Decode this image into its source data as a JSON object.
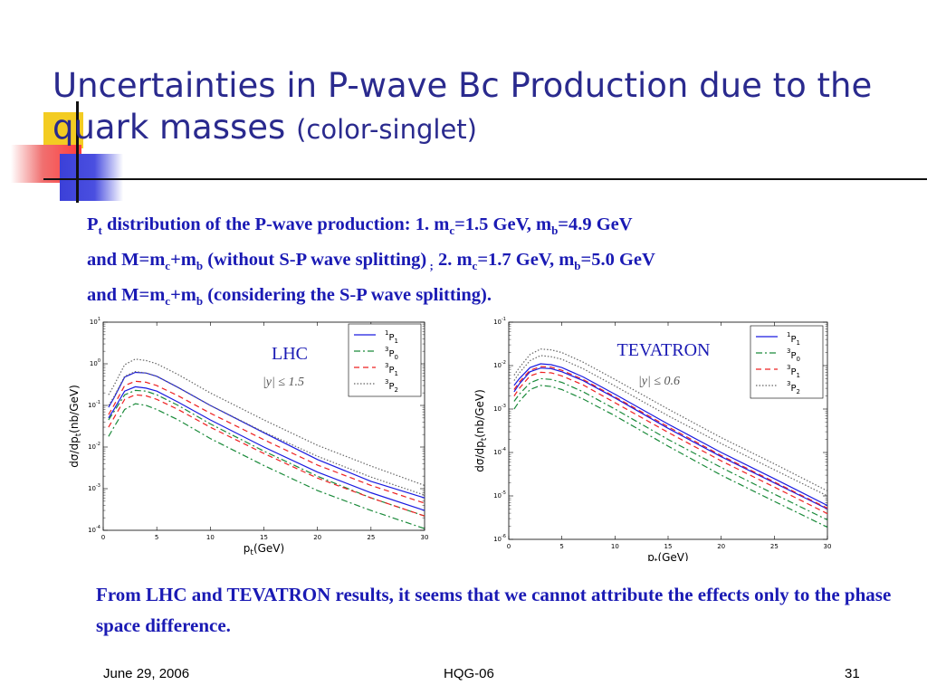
{
  "title": {
    "main": "Uncertainties in P-wave Bc Production due to the quark masses",
    "sub": "(color-singlet)"
  },
  "description": {
    "line1": {
      "p": "P",
      "p_sub": "t",
      "t1": " distribution  of the P-wave production:  1. m",
      "mc_sub": "c",
      "t2": "=1.5 GeV, m",
      "mb_sub": "b",
      "t3": "=4.9 GeV"
    },
    "line2": {
      "t1": "and M=m",
      "c_sub": "c",
      "t2": "+m",
      "b_sub": "b",
      "t3": " (without S-P wave splitting)",
      "semi": " ;",
      "t4": " 2. m",
      "c2_sub": "c",
      "t5": "=1.7 GeV, m",
      "b2_sub": "b",
      "t6": "=5.0 GeV"
    },
    "line3": {
      "t1": "and M=m",
      "c_sub": "c",
      "t2": "+m",
      "b_sub": "b",
      "t3": " (considering the S-P wave splitting)."
    }
  },
  "conclusion": "From LHC and TEVATRON results, it seems that we cannot attribute the effects only to the phase space difference.",
  "footer": {
    "date": "June 29, 2006",
    "center": "HQG-06",
    "page": "31"
  },
  "colors": {
    "title": "#2a2a8e",
    "body": "#1a1ab4",
    "p1": "#1a1ae0",
    "p0": "#1a8a3a",
    "p11": "#ee2222",
    "p2": "#666666"
  },
  "chart_data": [
    {
      "type": "line",
      "name": "LHC",
      "annotation": "|y| ≤ 1.5",
      "xlabel": "p_t(GeV)",
      "ylabel": "dσ/dp_t(nb/GeV)",
      "xlim": [
        0,
        30
      ],
      "xticks": [
        "0",
        "5",
        "10",
        "15",
        "20",
        "25",
        "30"
      ],
      "yscale": "log",
      "ylim": [
        0.0001,
        10
      ],
      "yticks": [
        "10^-4",
        "10^-3",
        "10^-2",
        "10^-1",
        "10^0",
        "10^1"
      ],
      "x": [
        0.5,
        1,
        2,
        3,
        4,
        5,
        7,
        10,
        15,
        20,
        25,
        30
      ],
      "legend": [
        "1P1",
        "3P0",
        "3P1",
        "3P2"
      ],
      "legend_position": "top-right",
      "series": [
        {
          "name": "1P1",
          "color": "#1a1ae0",
          "dash": "",
          "values": [
            0.09,
            0.15,
            0.48,
            0.62,
            0.6,
            0.5,
            0.27,
            0.1,
            0.022,
            0.005,
            0.0015,
            0.0006
          ]
        },
        {
          "name": "1P1",
          "color": "#1a1ae0",
          "dash": "",
          "values": [
            0.05,
            0.08,
            0.22,
            0.28,
            0.26,
            0.22,
            0.12,
            0.045,
            0.01,
            0.0025,
            0.0008,
            0.0003
          ]
        },
        {
          "name": "3P0",
          "color": "#1a8a3a",
          "dash": "7 3 2 3",
          "values": [
            0.045,
            0.07,
            0.18,
            0.23,
            0.22,
            0.18,
            0.1,
            0.036,
            0.008,
            0.002,
            0.0006,
            0.00022
          ]
        },
        {
          "name": "3P0",
          "color": "#1a8a3a",
          "dash": "7 3 2 3",
          "values": [
            0.018,
            0.03,
            0.08,
            0.11,
            0.1,
            0.08,
            0.045,
            0.016,
            0.0036,
            0.0009,
            0.0003,
            0.00011
          ]
        },
        {
          "name": "3P1",
          "color": "#ee2222",
          "dash": "6 4",
          "values": [
            0.06,
            0.1,
            0.3,
            0.38,
            0.36,
            0.3,
            0.17,
            0.065,
            0.015,
            0.0037,
            0.0012,
            0.00045
          ]
        },
        {
          "name": "3P1",
          "color": "#ee2222",
          "dash": "6 4",
          "values": [
            0.03,
            0.05,
            0.14,
            0.18,
            0.17,
            0.14,
            0.08,
            0.03,
            0.007,
            0.0018,
            0.0006,
            0.00022
          ]
        },
        {
          "name": "3P2",
          "color": "#666666",
          "dash": "1.5 2",
          "values": [
            0.18,
            0.3,
            0.95,
            1.3,
            1.2,
            1.0,
            0.55,
            0.2,
            0.045,
            0.011,
            0.0035,
            0.0012
          ]
        },
        {
          "name": "3P2",
          "color": "#666666",
          "dash": "1.5 2",
          "values": [
            0.1,
            0.16,
            0.5,
            0.65,
            0.6,
            0.5,
            0.27,
            0.1,
            0.023,
            0.006,
            0.0019,
            0.0007
          ]
        }
      ]
    },
    {
      "type": "line",
      "name": "TEVATRON",
      "annotation": "|y| ≤ 0.6",
      "xlabel": "p_t(GeV)",
      "ylabel": "dσ/dp_t(nb/GeV)",
      "xlim": [
        0,
        30
      ],
      "xticks": [
        "0",
        "5",
        "10",
        "15",
        "20",
        "25",
        "30"
      ],
      "yscale": "log",
      "ylim": [
        1e-06,
        0.1
      ],
      "yticks": [
        "10^-6",
        "10^-5",
        "10^-4",
        "10^-3",
        "10^-2",
        "10^-1"
      ],
      "x": [
        0.5,
        1,
        2,
        3,
        4,
        5,
        7,
        10,
        15,
        20,
        25,
        30
      ],
      "legend": [
        "1P1",
        "3P0",
        "3P1",
        "3P2"
      ],
      "legend_position": "top-right",
      "series": [
        {
          "name": "1P1",
          "color": "#1a1ae0",
          "dash": "",
          "values": [
            0.0035,
            0.005,
            0.009,
            0.011,
            0.0105,
            0.009,
            0.0055,
            0.0022,
            0.00045,
            0.0001,
            2.5e-05,
            6e-06
          ]
        },
        {
          "name": "1P1",
          "color": "#1a1ae0",
          "dash": "",
          "values": [
            0.0025,
            0.0038,
            0.0072,
            0.0088,
            0.0085,
            0.0072,
            0.0045,
            0.0018,
            0.00036,
            8e-05,
            2e-05,
            5e-06
          ]
        },
        {
          "name": "3P0",
          "color": "#1a8a3a",
          "dash": "7 3 2 3",
          "values": [
            0.0015,
            0.0022,
            0.004,
            0.005,
            0.0048,
            0.0041,
            0.0025,
            0.001,
            0.0002,
            4.5e-05,
            1.1e-05,
            2.8e-06
          ]
        },
        {
          "name": "3P0",
          "color": "#1a8a3a",
          "dash": "7 3 2 3",
          "values": [
            0.001,
            0.0015,
            0.0028,
            0.0035,
            0.0033,
            0.0028,
            0.0017,
            0.0007,
            0.00014,
            3e-05,
            7.5e-06,
            1.9e-06
          ]
        },
        {
          "name": "3P1",
          "color": "#ee2222",
          "dash": "6 4",
          "values": [
            0.0028,
            0.0042,
            0.0078,
            0.0095,
            0.0092,
            0.0078,
            0.0048,
            0.0019,
            0.00039,
            8.5e-05,
            2.1e-05,
            5.2e-06
          ]
        },
        {
          "name": "3P1",
          "color": "#ee2222",
          "dash": "6 4",
          "values": [
            0.002,
            0.003,
            0.0058,
            0.007,
            0.0068,
            0.0058,
            0.0036,
            0.0014,
            0.00029,
            6.4e-05,
            1.6e-05,
            3.9e-06
          ]
        },
        {
          "name": "3P2",
          "color": "#666666",
          "dash": "1.5 2",
          "values": [
            0.006,
            0.009,
            0.018,
            0.024,
            0.023,
            0.02,
            0.012,
            0.0048,
            0.001,
            0.00022,
            5.5e-05,
            1.3e-05
          ]
        },
        {
          "name": "3P2",
          "color": "#666666",
          "dash": "1.5 2",
          "values": [
            0.0045,
            0.0068,
            0.013,
            0.017,
            0.016,
            0.014,
            0.0085,
            0.0034,
            0.0007,
            0.00016,
            4e-05,
            1e-05
          ]
        }
      ]
    }
  ]
}
